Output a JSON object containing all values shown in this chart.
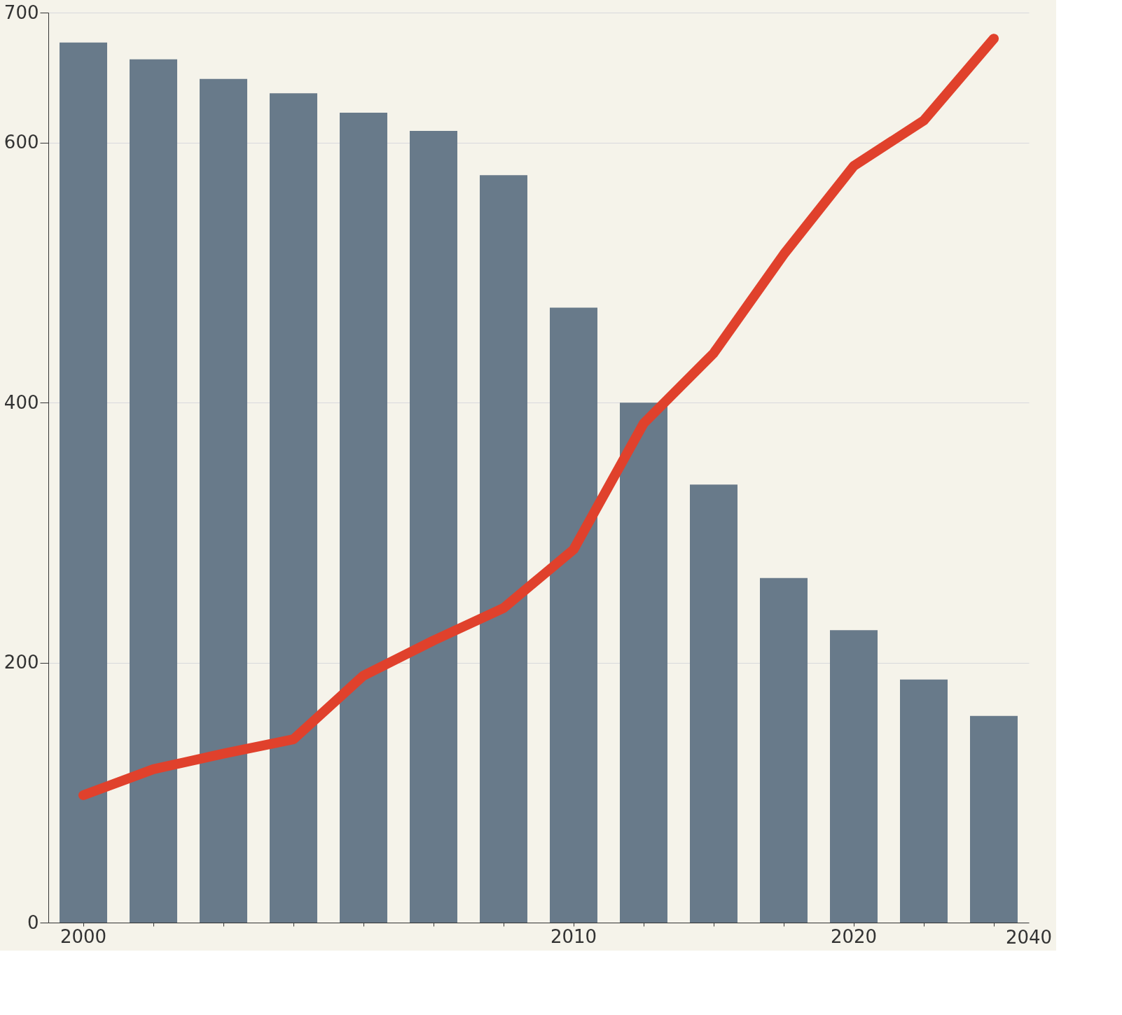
{
  "chart_data": {
    "type": "bar",
    "categories": [
      "2000",
      null,
      null,
      null,
      null,
      null,
      null,
      "2010",
      null,
      null,
      null,
      "2020",
      null,
      null
    ],
    "series": [
      {
        "color": "#687a8a",
        "values": [
          677,
          664,
          649,
          638,
          623,
          609,
          575,
          473,
          400,
          337,
          265,
          225,
          187,
          159
        ]
      },
      {
        "type": "line",
        "color": "#e0412c",
        "values": [
          98,
          118,
          130,
          141,
          190,
          217,
          242,
          287,
          384,
          438,
          514,
          582,
          617,
          680
        ]
      }
    ],
    "ylim": [
      0,
      700
    ],
    "yticks": [
      0,
      200,
      400,
      600,
      700
    ],
    "grid": "y",
    "line_style": "solid",
    "marker": "none",
    "annotations": [
      "2040"
    ]
  }
}
